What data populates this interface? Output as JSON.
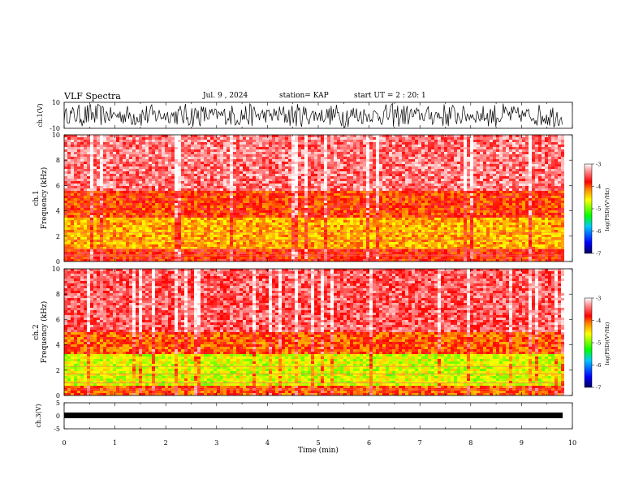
{
  "header": {
    "title": "VLF Spectra",
    "date": "Jul. 9 , 2024",
    "station": "station= KAP",
    "start": "start UT =  2 : 20: 1"
  },
  "chart_data": [
    {
      "type": "line",
      "panel": "ch1-waveform",
      "ylabel": "ch.1(V)",
      "ylim": [
        -10,
        10
      ],
      "yticks": [
        "10",
        "-10"
      ],
      "xlim": [
        0,
        10
      ],
      "description_values": "dense oscillating waveform spanning roughly -9 to +9 V over 0–9.8 min"
    },
    {
      "type": "heatmap",
      "panel": "ch1-spectrogram",
      "ylabel": "ch.1 Frequency (kHz)",
      "ylim": [
        0,
        10
      ],
      "yticks": [
        "0",
        "2",
        "4",
        "6",
        "8",
        "10"
      ],
      "xlim": [
        0,
        10
      ],
      "bands_khz": [
        {
          "from": 0,
          "to": 1,
          "level": -3.8
        },
        {
          "from": 1,
          "to": 3.5,
          "level": -4.3
        },
        {
          "from": 3.5,
          "to": 5.5,
          "level": -3.9
        },
        {
          "from": 5.5,
          "to": 10,
          "level": -3.4
        }
      ]
    },
    {
      "type": "heatmap",
      "panel": "ch2-spectrogram",
      "ylabel": "ch.2 Frequency (kHz)",
      "ylim": [
        0,
        10
      ],
      "yticks": [
        "0",
        "2",
        "4",
        "6",
        "8",
        "10"
      ],
      "xlim": [
        0,
        10
      ],
      "bands_khz": [
        {
          "from": 0,
          "to": 0.8,
          "level": -4.0
        },
        {
          "from": 0.8,
          "to": 3.2,
          "level": -4.7
        },
        {
          "from": 3.2,
          "to": 5.0,
          "level": -4.0
        },
        {
          "from": 5.0,
          "to": 10,
          "level": -3.5
        }
      ]
    },
    {
      "type": "line",
      "panel": "ch3-waveform",
      "ylabel": "ch.3(V)",
      "ylim": [
        -5,
        5
      ],
      "yticks": [
        "5",
        "0",
        "-5"
      ],
      "xlabel": "Time (min)",
      "xlim": [
        0,
        10
      ],
      "xticks": [
        "0",
        "1",
        "2",
        "3",
        "4",
        "5",
        "6",
        "7",
        "8",
        "9",
        "10"
      ],
      "description_values": "nearly constant thick band near -0.5 V"
    }
  ],
  "colorbar": {
    "label": "log(PSD)(V²/Hz)",
    "range": [
      -7,
      -3
    ],
    "ticks": [
      "-3",
      "-4",
      "-5",
      "-6",
      "-7"
    ],
    "colors": [
      "#000080",
      "#0000ff",
      "#00bfff",
      "#00ff00",
      "#ffff00",
      "#ff8000",
      "#ff0000",
      "#ff8080",
      "#ffffff"
    ]
  }
}
